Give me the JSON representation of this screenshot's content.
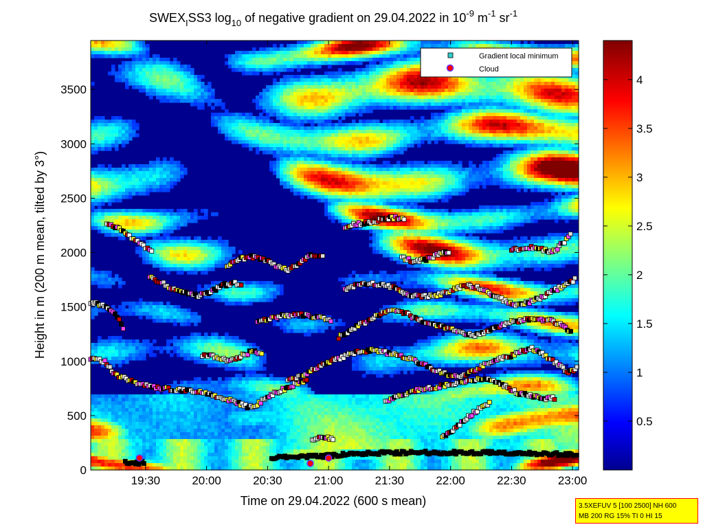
{
  "chart_data": {
    "type": "heatmap",
    "title": {
      "part1": "SWEX",
      "sub1": "I",
      "part2": "SS3 log",
      "sub2": "10",
      "part3": " of negative gradient on 29.04.2022 in 10",
      "sup1": "-9",
      "part4": " m",
      "sup2": "-1",
      "part5": " sr",
      "sup3": "-1"
    },
    "xlabel": "Time on 29.04.2022 (600 s mean)",
    "ylabel": "Height in m (200 m mean, tilted by 3°)",
    "x_range": [
      "19:03",
      "23:03"
    ],
    "x_ticks": [
      "19:30",
      "20:00",
      "20:30",
      "21:00",
      "21:30",
      "22:00",
      "22:30",
      "23:00"
    ],
    "ylim": [
      0,
      3950
    ],
    "y_ticks": [
      0,
      500,
      1000,
      1500,
      2000,
      2500,
      3000,
      3500
    ],
    "colorbar": {
      "colormap": "jet",
      "range": [
        0,
        4.4
      ],
      "ticks": [
        0.5,
        1,
        1.5,
        2,
        2.5,
        3,
        3.5,
        4
      ],
      "tick_labels": [
        "0.5",
        "1",
        "1.5",
        "2",
        "2.5",
        "3",
        "3.5",
        "4"
      ]
    },
    "legend": {
      "placement": "top-right",
      "entries": [
        {
          "label": "Gradient local minimum",
          "marker": "square",
          "color": "#33cccc"
        },
        {
          "label": "Cloud",
          "marker": "circle",
          "color": "#ff0000",
          "edge": "#6633ff"
        }
      ]
    },
    "series": [
      {
        "kind": "gradient-minimum-layer",
        "points": [
          [
            "19:03",
            1020
          ],
          [
            "19:10",
            1000
          ],
          [
            "19:15",
            880
          ],
          [
            "19:25",
            800
          ],
          [
            "19:35",
            760
          ],
          [
            "19:45",
            740
          ],
          [
            "19:55",
            720
          ],
          [
            "20:05",
            680
          ],
          [
            "20:10",
            650
          ],
          [
            "20:15",
            620
          ],
          [
            "20:20",
            580
          ],
          [
            "20:25",
            600
          ],
          [
            "20:30",
            680
          ],
          [
            "20:35",
            720
          ],
          [
            "20:40",
            760
          ],
          [
            "20:45",
            800
          ],
          [
            "20:50",
            820
          ]
        ]
      },
      {
        "kind": "gradient-minimum-layer",
        "points": [
          [
            "19:03",
            1540
          ],
          [
            "19:08",
            1520
          ],
          [
            "19:13",
            1480
          ],
          [
            "19:17",
            1380
          ],
          [
            "19:20",
            1240
          ]
        ]
      },
      {
        "kind": "gradient-minimum-layer",
        "points": [
          [
            "19:11",
            2250
          ],
          [
            "19:15",
            2240
          ],
          [
            "19:18",
            2200
          ],
          [
            "19:22",
            2150
          ],
          [
            "19:26",
            2100
          ],
          [
            "19:30",
            2050
          ],
          [
            "19:34",
            2000
          ]
        ]
      },
      {
        "kind": "gradient-minimum-layer",
        "points": [
          [
            "19:32",
            1780
          ],
          [
            "19:38",
            1720
          ],
          [
            "19:44",
            1660
          ],
          [
            "19:50",
            1620
          ],
          [
            "19:56",
            1600
          ],
          [
            "20:02",
            1640
          ],
          [
            "20:08",
            1700
          ],
          [
            "20:14",
            1720
          ],
          [
            "20:18",
            1680
          ]
        ]
      },
      {
        "kind": "gradient-minimum-layer",
        "points": [
          [
            "19:58",
            1060
          ],
          [
            "20:04",
            1040
          ],
          [
            "20:10",
            1010
          ],
          [
            "20:16",
            1040
          ],
          [
            "20:22",
            1090
          ],
          [
            "20:28",
            1080
          ]
        ]
      },
      {
        "kind": "gradient-minimum-layer",
        "points": [
          [
            "20:10",
            1880
          ],
          [
            "20:16",
            1940
          ],
          [
            "20:22",
            1960
          ],
          [
            "20:28",
            1940
          ],
          [
            "20:34",
            1880
          ],
          [
            "20:40",
            1840
          ],
          [
            "20:46",
            1900
          ],
          [
            "20:52",
            1980
          ],
          [
            "20:58",
            1960
          ]
        ]
      },
      {
        "kind": "gradient-minimum-layer",
        "points": [
          [
            "20:25",
            1360
          ],
          [
            "20:32",
            1400
          ],
          [
            "20:38",
            1420
          ],
          [
            "20:44",
            1430
          ],
          [
            "20:50",
            1420
          ],
          [
            "20:56",
            1400
          ],
          [
            "21:02",
            1380
          ]
        ]
      },
      {
        "kind": "gradient-minimum-layer",
        "points": [
          [
            "20:40",
            820
          ],
          [
            "20:46",
            860
          ],
          [
            "20:52",
            920
          ],
          [
            "20:58",
            980
          ],
          [
            "21:04",
            1020
          ],
          [
            "21:10",
            1060
          ],
          [
            "21:16",
            1090
          ],
          [
            "21:22",
            1100
          ],
          [
            "21:28",
            1080
          ],
          [
            "21:34",
            1060
          ],
          [
            "21:40",
            1020
          ],
          [
            "21:46",
            980
          ],
          [
            "21:52",
            920
          ],
          [
            "21:58",
            880
          ],
          [
            "22:04",
            860
          ],
          [
            "22:10",
            900
          ],
          [
            "22:16",
            960
          ],
          [
            "22:22",
            1010
          ],
          [
            "22:28",
            1040
          ],
          [
            "22:34",
            1080
          ],
          [
            "22:40",
            1120
          ],
          [
            "22:46",
            1060
          ],
          [
            "22:52",
            980
          ],
          [
            "22:58",
            900
          ],
          [
            "23:03",
            940
          ]
        ]
      },
      {
        "kind": "gradient-minimum-layer",
        "points": [
          [
            "20:52",
            280
          ],
          [
            "20:58",
            300
          ],
          [
            "21:03",
            280
          ]
        ]
      },
      {
        "kind": "gradient-minimum-layer",
        "points": [
          [
            "21:05",
            1220
          ],
          [
            "21:12",
            1300
          ],
          [
            "21:18",
            1360
          ],
          [
            "21:24",
            1420
          ],
          [
            "21:30",
            1480
          ],
          [
            "21:36",
            1460
          ],
          [
            "21:42",
            1400
          ],
          [
            "21:48",
            1360
          ],
          [
            "21:54",
            1330
          ],
          [
            "22:00",
            1300
          ],
          [
            "22:06",
            1260
          ],
          [
            "22:12",
            1240
          ],
          [
            "22:18",
            1280
          ],
          [
            "22:24",
            1320
          ],
          [
            "22:30",
            1360
          ],
          [
            "22:36",
            1380
          ],
          [
            "22:42",
            1380
          ],
          [
            "22:48",
            1380
          ],
          [
            "22:54",
            1340
          ],
          [
            "23:00",
            1260
          ]
        ]
      },
      {
        "kind": "gradient-minimum-layer",
        "points": [
          [
            "21:08",
            1660
          ],
          [
            "21:14",
            1700
          ],
          [
            "21:20",
            1720
          ],
          [
            "21:26",
            1700
          ],
          [
            "21:32",
            1680
          ],
          [
            "21:38",
            1620
          ],
          [
            "21:44",
            1600
          ],
          [
            "21:50",
            1600
          ],
          [
            "21:56",
            1620
          ],
          [
            "22:02",
            1660
          ],
          [
            "22:08",
            1700
          ],
          [
            "22:14",
            1680
          ],
          [
            "22:20",
            1620
          ],
          [
            "22:26",
            1560
          ],
          [
            "22:32",
            1520
          ],
          [
            "22:38",
            1540
          ],
          [
            "22:44",
            1580
          ],
          [
            "22:50",
            1640
          ],
          [
            "22:56",
            1700
          ],
          [
            "23:02",
            1760
          ]
        ]
      },
      {
        "kind": "gradient-minimum-layer",
        "points": [
          [
            "21:08",
            2240
          ],
          [
            "21:14",
            2260
          ],
          [
            "21:20",
            2280
          ],
          [
            "21:26",
            2300
          ],
          [
            "21:32",
            2320
          ],
          [
            "21:38",
            2300
          ]
        ]
      },
      {
        "kind": "gradient-minimum-layer",
        "points": [
          [
            "21:36",
            1950
          ],
          [
            "21:42",
            1920
          ],
          [
            "21:48",
            1940
          ],
          [
            "21:54",
            1980
          ],
          [
            "22:00",
            2010
          ]
        ]
      },
      {
        "kind": "gradient-minimum-layer",
        "points": [
          [
            "21:28",
            620
          ],
          [
            "21:34",
            680
          ],
          [
            "21:40",
            720
          ],
          [
            "21:46",
            740
          ],
          [
            "21:52",
            760
          ],
          [
            "21:58",
            780
          ],
          [
            "22:04",
            800
          ],
          [
            "22:10",
            820
          ],
          [
            "22:16",
            840
          ],
          [
            "22:22",
            820
          ],
          [
            "22:28",
            760
          ],
          [
            "22:34",
            700
          ],
          [
            "22:40",
            680
          ],
          [
            "22:46",
            660
          ],
          [
            "22:52",
            660
          ]
        ]
      },
      {
        "kind": "gradient-minimum-layer",
        "points": [
          [
            "21:56",
            300
          ],
          [
            "22:02",
            380
          ],
          [
            "22:08",
            480
          ],
          [
            "22:14",
            560
          ],
          [
            "22:20",
            620
          ]
        ]
      },
      {
        "kind": "gradient-minimum-layer",
        "points": [
          [
            "22:30",
            2020
          ],
          [
            "22:38",
            2050
          ],
          [
            "22:44",
            2040
          ],
          [
            "22:50",
            2000
          ],
          [
            "22:56",
            2100
          ],
          [
            "23:00",
            2200
          ]
        ]
      },
      {
        "kind": "gradient-minimum-layer",
        "points": [
          [
            "20:32",
            110
          ],
          [
            "20:45",
            120
          ],
          [
            "21:00",
            130
          ],
          [
            "21:15",
            150
          ],
          [
            "21:30",
            160
          ],
          [
            "21:45",
            160
          ],
          [
            "22:00",
            160
          ],
          [
            "22:15",
            160
          ],
          [
            "22:30",
            155
          ],
          [
            "22:45",
            150
          ],
          [
            "23:03",
            140
          ]
        ]
      },
      {
        "kind": "gradient-minimum-layer",
        "points": [
          [
            "19:20",
            70
          ],
          [
            "19:25",
            65
          ],
          [
            "19:30",
            70
          ]
        ]
      }
    ],
    "clouds": [
      [
        "19:27",
        110
      ],
      [
        "20:51",
        60
      ],
      [
        "21:00",
        110
      ]
    ]
  },
  "info_box": {
    "line1": "3.5XEFUV 5 [100 2500] NH 600",
    "line2": "MB 200 RG 15% TI 0 HI 15"
  }
}
